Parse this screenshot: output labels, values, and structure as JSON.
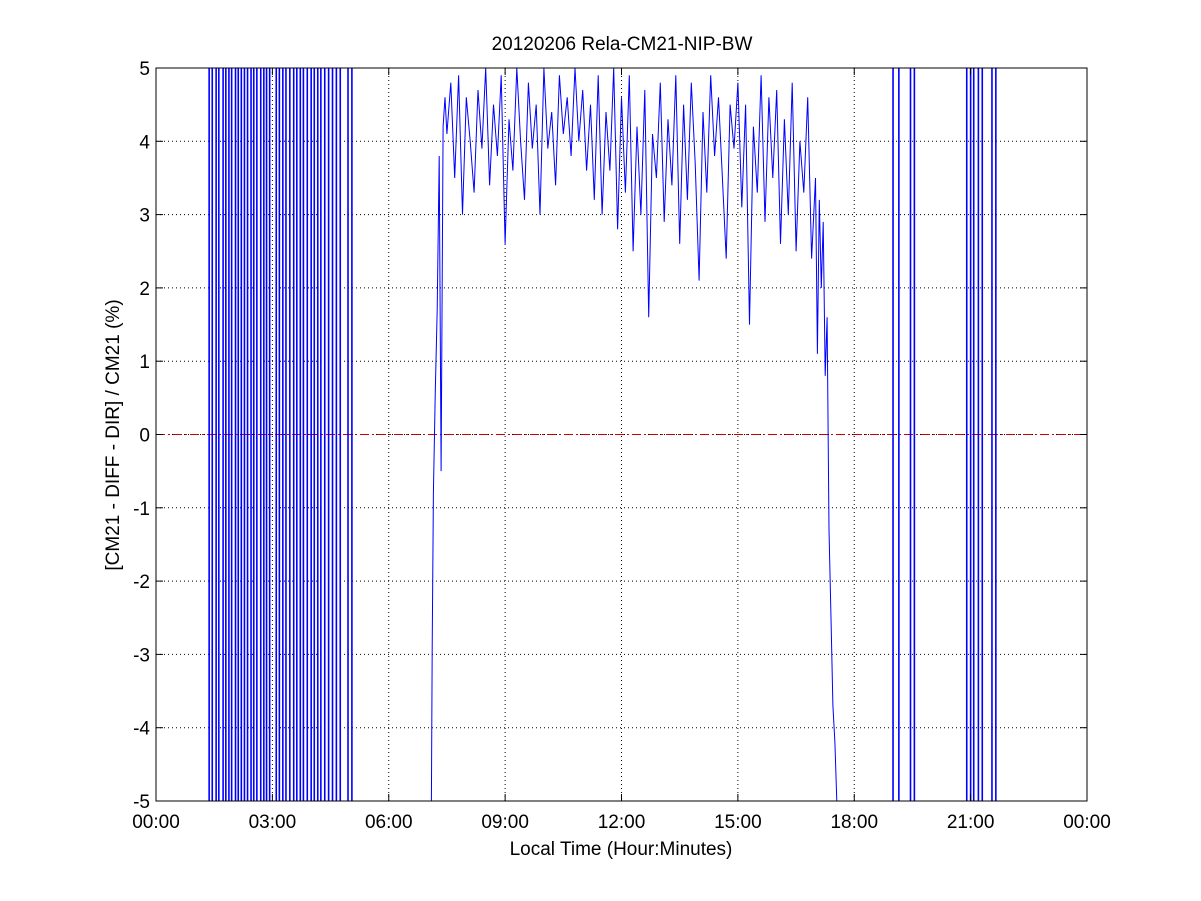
{
  "chart_data": {
    "type": "line",
    "title": "20120206 Rela-CM21-NIP-BW",
    "xlabel": "Local Time (Hour:Minutes)",
    "ylabel": "[CM21 - DIFF - DIR] / CM21 (%)",
    "x_unit": "hours",
    "xlim": [
      0,
      24
    ],
    "ylim": [
      -5,
      5
    ],
    "x_ticks": [
      0,
      3,
      6,
      9,
      12,
      15,
      18,
      21,
      24
    ],
    "x_tick_labels": [
      "00:00",
      "03:00",
      "06:00",
      "09:00",
      "12:00",
      "15:00",
      "18:00",
      "21:00",
      "00:00"
    ],
    "y_ticks": [
      -5,
      -4,
      -3,
      -2,
      -1,
      0,
      1,
      2,
      3,
      4,
      5
    ],
    "y_tick_labels": [
      "-5",
      "-4",
      "-3",
      "-2",
      "-1",
      "0",
      "1",
      "2",
      "3",
      "4",
      "5"
    ],
    "grid": true,
    "reference_line": {
      "y": 0,
      "color": "#cc0000",
      "style": "dash-dot"
    },
    "series": [
      {
        "color": "#0000ff",
        "night_spike_times_hours": [
          1.37,
          1.45,
          1.55,
          1.62,
          1.73,
          1.8,
          1.88,
          1.95,
          2.05,
          2.12,
          2.2,
          2.28,
          2.36,
          2.45,
          2.52,
          2.6,
          2.7,
          2.78,
          2.85,
          2.93,
          3.1,
          3.18,
          3.27,
          3.35,
          3.45,
          3.55,
          3.63,
          3.72,
          3.8,
          3.9,
          4.0,
          4.08,
          4.17,
          4.25,
          4.35,
          4.45,
          4.55,
          4.65,
          4.75,
          4.95,
          5.05,
          19.0,
          19.15,
          19.45,
          19.55,
          20.9,
          21.0,
          21.08,
          21.2,
          21.3,
          21.55,
          21.65
        ],
        "points": [
          [
            7.1,
            -5
          ],
          [
            7.12,
            -2.9
          ],
          [
            7.15,
            -0.8
          ],
          [
            7.2,
            0.6
          ],
          [
            7.25,
            1.7
          ],
          [
            7.3,
            3.8
          ],
          [
            7.35,
            -0.5
          ],
          [
            7.4,
            4.2
          ],
          [
            7.45,
            4.6
          ],
          [
            7.5,
            4.1
          ],
          [
            7.6,
            4.8
          ],
          [
            7.7,
            3.5
          ],
          [
            7.8,
            4.9
          ],
          [
            7.9,
            3.0
          ],
          [
            8.0,
            4.6
          ],
          [
            8.1,
            4.0
          ],
          [
            8.2,
            3.3
          ],
          [
            8.3,
            4.7
          ],
          [
            8.4,
            3.9
          ],
          [
            8.5,
            5.0
          ],
          [
            8.6,
            3.4
          ],
          [
            8.7,
            4.5
          ],
          [
            8.8,
            3.8
          ],
          [
            8.9,
            4.9
          ],
          [
            9.0,
            2.6
          ],
          [
            9.1,
            4.3
          ],
          [
            9.2,
            3.6
          ],
          [
            9.3,
            5.0
          ],
          [
            9.4,
            4.0
          ],
          [
            9.5,
            3.2
          ],
          [
            9.6,
            4.8
          ],
          [
            9.7,
            3.9
          ],
          [
            9.8,
            4.5
          ],
          [
            9.9,
            3.0
          ],
          [
            10.0,
            5.0
          ],
          [
            10.1,
            3.9
          ],
          [
            10.2,
            4.4
          ],
          [
            10.3,
            3.4
          ],
          [
            10.4,
            4.9
          ],
          [
            10.5,
            4.1
          ],
          [
            10.6,
            4.6
          ],
          [
            10.7,
            3.8
          ],
          [
            10.8,
            5.0
          ],
          [
            10.9,
            4.0
          ],
          [
            11.0,
            4.7
          ],
          [
            11.1,
            3.6
          ],
          [
            11.2,
            4.5
          ],
          [
            11.3,
            3.2
          ],
          [
            11.4,
            4.9
          ],
          [
            11.5,
            3.0
          ],
          [
            11.6,
            4.4
          ],
          [
            11.7,
            3.6
          ],
          [
            11.8,
            5.0
          ],
          [
            11.9,
            2.8
          ],
          [
            12.0,
            4.6
          ],
          [
            12.1,
            3.3
          ],
          [
            12.2,
            4.9
          ],
          [
            12.3,
            2.5
          ],
          [
            12.4,
            4.2
          ],
          [
            12.5,
            3.0
          ],
          [
            12.6,
            4.7
          ],
          [
            12.7,
            1.6
          ],
          [
            12.8,
            4.1
          ],
          [
            12.9,
            3.5
          ],
          [
            13.0,
            4.8
          ],
          [
            13.1,
            2.9
          ],
          [
            13.2,
            4.3
          ],
          [
            13.3,
            3.4
          ],
          [
            13.4,
            4.9
          ],
          [
            13.5,
            2.6
          ],
          [
            13.6,
            4.5
          ],
          [
            13.7,
            3.2
          ],
          [
            13.8,
            4.8
          ],
          [
            13.9,
            3.7
          ],
          [
            14.0,
            2.1
          ],
          [
            14.1,
            4.4
          ],
          [
            14.2,
            3.3
          ],
          [
            14.3,
            4.9
          ],
          [
            14.4,
            3.8
          ],
          [
            14.5,
            4.6
          ],
          [
            14.6,
            3.5
          ],
          [
            14.7,
            2.4
          ],
          [
            14.8,
            4.5
          ],
          [
            14.9,
            3.9
          ],
          [
            15.0,
            4.8
          ],
          [
            15.1,
            3.1
          ],
          [
            15.2,
            4.5
          ],
          [
            15.3,
            1.5
          ],
          [
            15.4,
            4.2
          ],
          [
            15.5,
            3.3
          ],
          [
            15.6,
            4.9
          ],
          [
            15.7,
            2.9
          ],
          [
            15.8,
            4.6
          ],
          [
            15.9,
            3.5
          ],
          [
            16.0,
            4.7
          ],
          [
            16.1,
            2.6
          ],
          [
            16.2,
            4.3
          ],
          [
            16.3,
            3.0
          ],
          [
            16.4,
            4.8
          ],
          [
            16.5,
            2.5
          ],
          [
            16.6,
            4.0
          ],
          [
            16.7,
            3.3
          ],
          [
            16.8,
            4.6
          ],
          [
            16.9,
            2.4
          ],
          [
            17.0,
            3.5
          ],
          [
            17.05,
            1.1
          ],
          [
            17.1,
            3.2
          ],
          [
            17.15,
            2.0
          ],
          [
            17.2,
            2.9
          ],
          [
            17.25,
            0.8
          ],
          [
            17.3,
            1.6
          ],
          [
            17.35,
            -1.3
          ],
          [
            17.4,
            -2.5
          ],
          [
            17.45,
            -3.7
          ],
          [
            17.5,
            -4.2
          ],
          [
            17.55,
            -5
          ]
        ]
      }
    ]
  }
}
